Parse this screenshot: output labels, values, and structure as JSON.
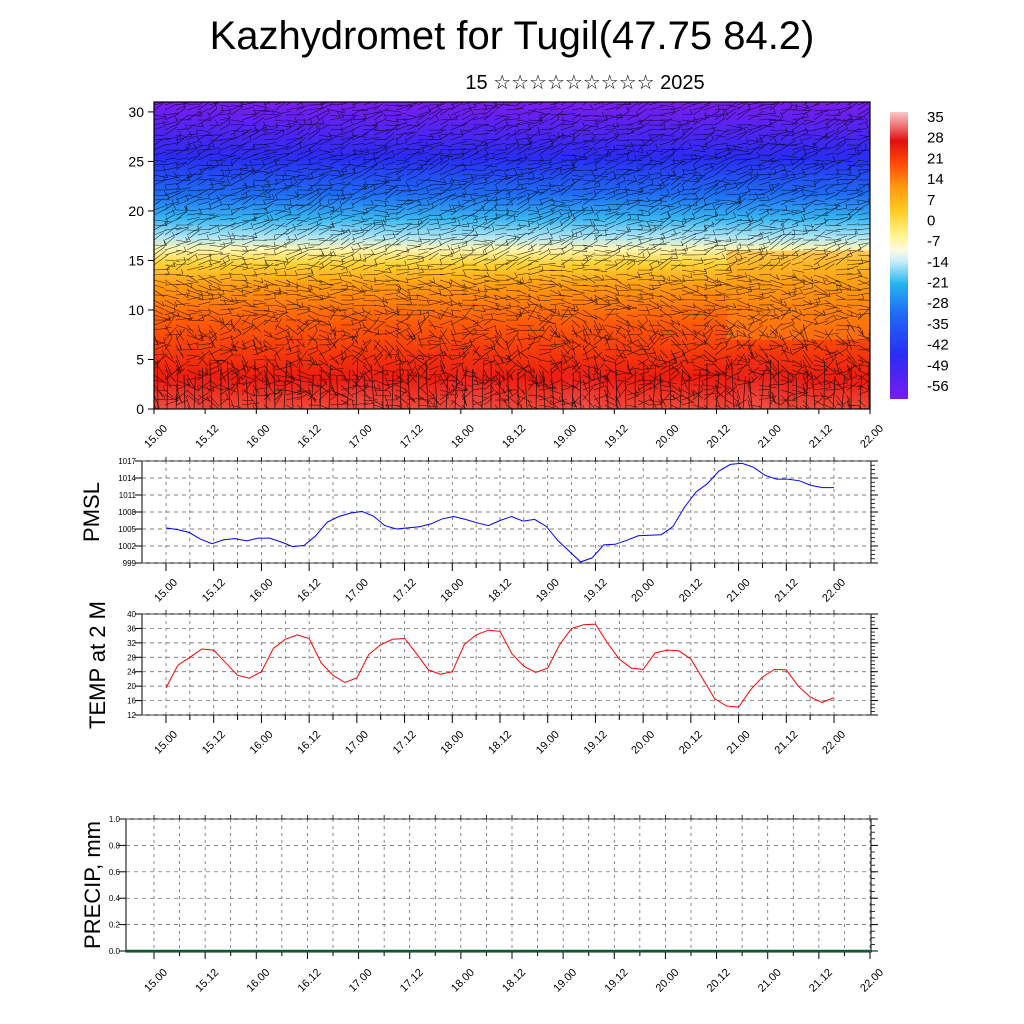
{
  "title": "Kazhydromet for Tugil(47.75 84.2)",
  "subtitle": "15 ☆☆☆☆☆☆☆☆☆ 2025",
  "date_labels": [
    "15.00",
    "15.12",
    "16.00",
    "16.12",
    "17.00",
    "17.12",
    "18.00",
    "18.12",
    "19.00",
    "19.12",
    "20.00",
    "20.12",
    "21.00",
    "21.12",
    "22.00"
  ],
  "chart_data": [
    {
      "type": "heatmap",
      "description_of_axes": "time vs height",
      "x_ticks": [
        "15.00",
        "15.12",
        "16.00",
        "16.12",
        "17.00",
        "17.12",
        "18.00",
        "18.12",
        "19.00",
        "19.12",
        "20.00",
        "20.12",
        "21.00",
        "21.12",
        "22.00"
      ],
      "y_ticks": [
        0,
        5,
        10,
        15,
        20,
        25,
        30
      ],
      "ylim": [
        0,
        31
      ],
      "colorbar_labels": [
        "35",
        "28",
        "21",
        "14",
        "7",
        "0",
        "-7",
        "-14",
        "-21",
        "-28",
        "-35",
        "-42",
        "-49",
        "-56"
      ],
      "colorbar_range": [
        -60,
        38
      ],
      "colors": [
        "#7a1cf0",
        "#2a2cf4",
        "#1e6cf4",
        "#23b4f0",
        "#a8e4f4",
        "#fffce0",
        "#fff080",
        "#ffc820",
        "#ff9810",
        "#ff5a08",
        "#f01a0a",
        "#e01010",
        "#f07070",
        "#f8c8c8"
      ]
    },
    {
      "type": "line",
      "ylabel": "PMSL",
      "color": "#0000ff",
      "ylim": [
        999,
        1017
      ],
      "y_ticks": [
        999,
        1002,
        1005,
        1008,
        1011,
        1014,
        1017
      ],
      "x_ticks": [
        "15.00",
        "15.12",
        "16.00",
        "16.12",
        "17.00",
        "17.12",
        "18.00",
        "18.12",
        "19.00",
        "19.12",
        "20.00",
        "20.12",
        "21.00",
        "21.12",
        "22.00"
      ],
      "values": [
        1005.2,
        1004.9,
        1004.4,
        1003.2,
        1002.4,
        1003.1,
        1003.3,
        1002.9,
        1003.4,
        1003.4,
        1002.7,
        1001.9,
        1002.1,
        1003.8,
        1006.2,
        1007.2,
        1007.8,
        1008.1,
        1007.3,
        1005.6,
        1005.0,
        1005.2,
        1005.4,
        1005.9,
        1006.8,
        1007.2,
        1006.7,
        1006.1,
        1005.6,
        1006.5,
        1007.2,
        1006.4,
        1006.7,
        1005.5,
        1003.0,
        1001.1,
        999.2,
        999.9,
        1002.2,
        1002.3,
        1003.0,
        1003.8,
        1003.9,
        1004.0,
        1005.4,
        1008.8,
        1011.5,
        1013.0,
        1015.2,
        1016.4,
        1016.6,
        1015.9,
        1014.5,
        1013.8,
        1013.8,
        1013.5,
        1012.7,
        1012.3,
        1012.3
      ]
    },
    {
      "type": "line",
      "ylabel": "TEMP at 2 M",
      "color": "#ff0000",
      "ylim": [
        12,
        40
      ],
      "y_ticks": [
        12,
        16,
        20,
        24,
        28,
        32,
        36,
        40
      ],
      "x_ticks": [
        "15.00",
        "15.12",
        "16.00",
        "16.12",
        "17.00",
        "17.12",
        "18.00",
        "18.12",
        "19.00",
        "19.12",
        "20.00",
        "20.12",
        "21.00",
        "21.12",
        "22.00"
      ],
      "values": [
        19.5,
        25.8,
        28.0,
        30.3,
        30.0,
        26.5,
        23.0,
        22.2,
        24.0,
        30.5,
        33.0,
        34.2,
        33.2,
        26.5,
        23.0,
        21.0,
        22.3,
        28.8,
        31.5,
        33.0,
        33.2,
        29.0,
        24.5,
        23.3,
        24.0,
        31.5,
        34.2,
        35.5,
        35.2,
        29.0,
        25.5,
        23.8,
        25.0,
        31.5,
        36.0,
        37.0,
        37.2,
        32.0,
        27.5,
        25.0,
        24.6,
        29.2,
        30.0,
        29.8,
        27.5,
        22.0,
        16.5,
        14.5,
        14.2,
        19.0,
        22.5,
        24.6,
        24.5,
        20.0,
        17.0,
        15.5,
        16.8
      ]
    },
    {
      "type": "bar",
      "ylabel": "PRECIP, mm",
      "ylim": [
        0,
        1.0
      ],
      "y_ticks": [
        "0.0",
        "0.2",
        "0.4",
        "0.6",
        "0.8",
        "1.0"
      ],
      "x_ticks": [
        "15.00",
        "15.12",
        "16.00",
        "16.12",
        "17.00",
        "17.12",
        "18.00",
        "18.12",
        "19.00",
        "19.12",
        "20.00",
        "20.12",
        "21.00",
        "21.12",
        "22.00"
      ],
      "values": []
    }
  ]
}
